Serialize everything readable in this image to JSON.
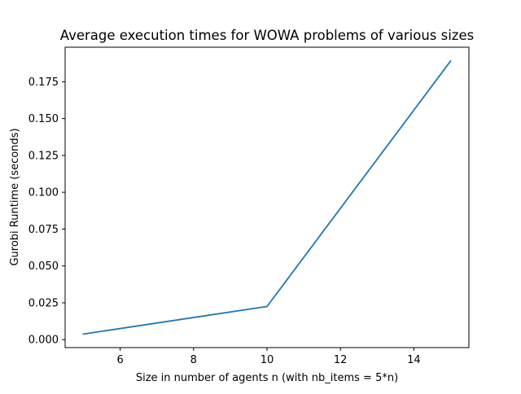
{
  "chart_data": {
    "type": "line",
    "title": "Average execution times for WOWA problems of various sizes",
    "xlabel": "Size in number of agents n (with nb_items = 5*n)",
    "ylabel": "Gurobi Runtime (seconds)",
    "xlim": [
      4.5,
      15.5
    ],
    "ylim": [
      -0.0054,
      0.1984
    ],
    "xticks": [
      6,
      8,
      10,
      12,
      14
    ],
    "xtick_labels": [
      "6",
      "8",
      "10",
      "12",
      "14"
    ],
    "yticks": [
      0.0,
      0.025,
      0.05,
      0.075,
      0.1,
      0.125,
      0.15,
      0.175
    ],
    "ytick_labels": [
      "0.000",
      "0.025",
      "0.050",
      "0.075",
      "0.100",
      "0.125",
      "0.150",
      "0.175"
    ],
    "grid": false,
    "legend": "none",
    "series": [
      {
        "color": "#1f77b4",
        "x": [
          5,
          10,
          15
        ],
        "y": [
          0.0038,
          0.0225,
          0.189
        ]
      }
    ]
  }
}
